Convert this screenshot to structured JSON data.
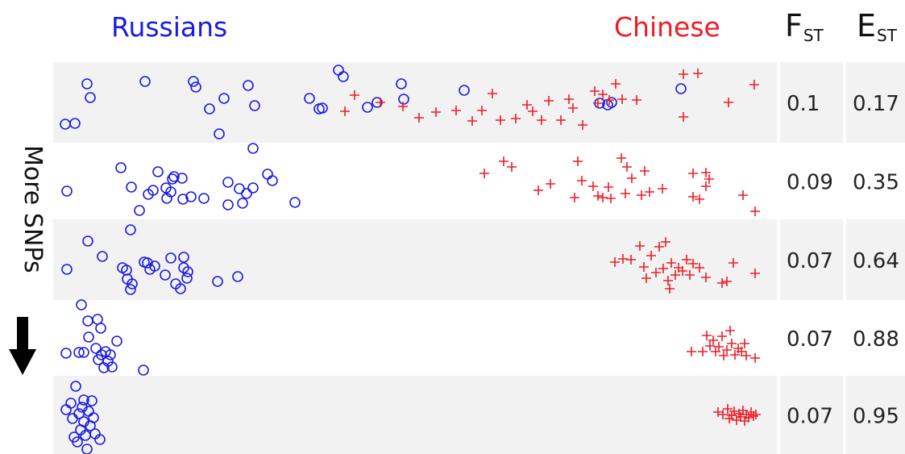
{
  "headers": {
    "russians": "Russians",
    "chinese": "Chinese",
    "fst_main": "F",
    "fst_sub": "ST",
    "est_main": "E",
    "est_sub": "ST"
  },
  "side_label": "More SNPs",
  "icons": {
    "arrow": "arrow-down-icon"
  },
  "colors": {
    "russians": "#1a1ae6",
    "chinese": "#ee1c24",
    "band_shaded": "#f2f2f2",
    "band_plain": "#ffffff"
  },
  "rows": [
    {
      "fst": "0.1",
      "est": "0.17",
      "russians": [
        [
          81,
          154
        ],
        [
          93,
          153
        ],
        [
          108,
          104
        ],
        [
          112,
          121
        ],
        [
          180,
          101
        ],
        [
          240,
          101
        ],
        [
          243,
          108
        ],
        [
          278,
          122
        ],
        [
          260,
          135
        ],
        [
          308,
          106
        ],
        [
          316,
          131
        ],
        [
          272,
          166
        ],
        [
          384,
          122
        ],
        [
          396,
          135
        ],
        [
          400,
          134
        ],
        [
          420,
          87
        ],
        [
          426,
          95
        ],
        [
          456,
          133
        ],
        [
          468,
          127
        ],
        [
          498,
          104
        ],
        [
          501,
          123
        ],
        [
          576,
          112
        ],
        [
          744,
          128
        ],
        [
          754,
          130
        ],
        [
          759,
          127
        ],
        [
          845,
          110
        ]
      ],
      "chinese": [
        [
          428,
          138
        ],
        [
          440,
          118
        ],
        [
          472,
          127
        ],
        [
          500,
          132
        ],
        [
          520,
          146
        ],
        [
          541,
          139
        ],
        [
          566,
          137
        ],
        [
          586,
          150
        ],
        [
          598,
          137
        ],
        [
          611,
          116
        ],
        [
          621,
          149
        ],
        [
          640,
          147
        ],
        [
          654,
          130
        ],
        [
          661,
          138
        ],
        [
          672,
          149
        ],
        [
          681,
          125
        ],
        [
          696,
          149
        ],
        [
          706,
          123
        ],
        [
          711,
          134
        ],
        [
          723,
          155
        ],
        [
          738,
          113
        ],
        [
          742,
          128
        ],
        [
          748,
          117
        ],
        [
          756,
          124
        ],
        [
          764,
          104
        ],
        [
          772,
          123
        ],
        [
          790,
          124
        ],
        [
          848,
          92
        ],
        [
          866,
          91
        ],
        [
          848,
          145
        ],
        [
          904,
          127
        ],
        [
          936,
          105
        ]
      ]
    },
    {
      "fst": "0.09",
      "est": "0.35",
      "russians": [
        [
          83,
          237
        ],
        [
          150,
          208
        ],
        [
          163,
          232
        ],
        [
          173,
          261
        ],
        [
          159,
          282
        ],
        [
          184,
          241
        ],
        [
          190,
          236
        ],
        [
          196,
          213
        ],
        [
          207,
          246
        ],
        [
          206,
          233
        ],
        [
          214,
          222
        ],
        [
          216,
          219
        ],
        [
          226,
          221
        ],
        [
          227,
          247
        ],
        [
          212,
          238
        ],
        [
          237,
          244
        ],
        [
          253,
          246
        ],
        [
          283,
          226
        ],
        [
          283,
          254
        ],
        [
          297,
          234
        ],
        [
          301,
          252
        ],
        [
          306,
          240
        ],
        [
          314,
          233
        ],
        [
          332,
          216
        ],
        [
          338,
          224
        ],
        [
          314,
          184
        ],
        [
          366,
          251
        ]
      ],
      "chinese": [
        [
          601,
          215
        ],
        [
          625,
          200
        ],
        [
          635,
          207
        ],
        [
          668,
          236
        ],
        [
          683,
          228
        ],
        [
          713,
          245
        ],
        [
          717,
          200
        ],
        [
          722,
          224
        ],
        [
          736,
          231
        ],
        [
          742,
          243
        ],
        [
          748,
          245
        ],
        [
          755,
          232
        ],
        [
          758,
          246
        ],
        [
          771,
          196
        ],
        [
          776,
          240
        ],
        [
          778,
          207
        ],
        [
          784,
          221
        ],
        [
          796,
          242
        ],
        [
          800,
          212
        ],
        [
          806,
          238
        ],
        [
          822,
          234
        ],
        [
          860,
          215
        ],
        [
          860,
          244
        ],
        [
          876,
          214
        ],
        [
          880,
          222
        ],
        [
          876,
          231
        ],
        [
          868,
          247
        ],
        [
          922,
          242
        ],
        [
          937,
          262
        ]
      ]
    },
    {
      "fst": "0.07",
      "est": "0.64",
      "russians": [
        [
          83,
          334
        ],
        [
          109,
          299
        ],
        [
          127,
          318
        ],
        [
          152,
          332
        ],
        [
          157,
          335
        ],
        [
          162,
          359
        ],
        [
          158,
          346
        ],
        [
          162,
          285
        ],
        [
          164,
          352
        ],
        [
          179,
          325
        ],
        [
          183,
          326
        ],
        [
          186,
          334
        ],
        [
          192,
          330
        ],
        [
          205,
          341
        ],
        [
          212,
          320
        ],
        [
          228,
          319
        ],
        [
          228,
          332
        ],
        [
          233,
          337
        ],
        [
          232,
          345
        ],
        [
          218,
          352
        ],
        [
          224,
          358
        ],
        [
          270,
          349
        ],
        [
          295,
          343
        ]
      ],
      "chinese": [
        [
          763,
          325
        ],
        [
          773,
          321
        ],
        [
          783,
          322
        ],
        [
          794,
          305
        ],
        [
          799,
          331
        ],
        [
          802,
          345
        ],
        [
          808,
          317
        ],
        [
          814,
          338
        ],
        [
          818,
          306
        ],
        [
          823,
          333
        ],
        [
          826,
          300
        ],
        [
          829,
          348
        ],
        [
          831,
          358
        ],
        [
          833,
          326
        ],
        [
          838,
          341
        ],
        [
          842,
          332
        ],
        [
          847,
          336
        ],
        [
          852,
          322
        ],
        [
          856,
          341
        ],
        [
          860,
          327
        ],
        [
          868,
          332
        ],
        [
          876,
          344
        ],
        [
          896,
          351
        ],
        [
          902,
          349
        ],
        [
          910,
          326
        ],
        [
          937,
          339
        ]
      ]
    },
    {
      "fst": "0.07",
      "est": "0.88",
      "russians": [
        [
          82,
          438
        ],
        [
          98,
          437
        ],
        [
          101,
          378
        ],
        [
          104,
          437
        ],
        [
          109,
          398
        ],
        [
          110,
          418
        ],
        [
          119,
          432
        ],
        [
          121,
          396
        ],
        [
          122,
          446
        ],
        [
          125,
          407
        ],
        [
          129,
          456
        ],
        [
          126,
          440
        ],
        [
          131,
          436
        ],
        [
          134,
          448
        ],
        [
          137,
          440
        ],
        [
          139,
          455
        ],
        [
          145,
          423
        ],
        [
          178,
          459
        ]
      ],
      "chinese": [
        [
          858,
          436
        ],
        [
          872,
          436
        ],
        [
          877,
          416
        ],
        [
          881,
          429
        ],
        [
          885,
          422
        ],
        [
          888,
          436
        ],
        [
          892,
          430
        ],
        [
          896,
          417
        ],
        [
          898,
          441
        ],
        [
          902,
          434
        ],
        [
          906,
          410
        ],
        [
          908,
          426
        ],
        [
          912,
          440
        ],
        [
          916,
          432
        ],
        [
          920,
          436
        ],
        [
          924,
          426
        ],
        [
          926,
          441
        ],
        [
          937,
          444
        ]
      ]
    },
    {
      "fst": "0.07",
      "est": "0.95",
      "russians": [
        [
          82,
          508
        ],
        [
          88,
          500
        ],
        [
          90,
          519
        ],
        [
          92,
          542
        ],
        [
          94,
          479
        ],
        [
          96,
          548
        ],
        [
          98,
          513
        ],
        [
          100,
          533
        ],
        [
          102,
          505
        ],
        [
          104,
          496
        ],
        [
          104,
          523
        ],
        [
          106,
          540
        ],
        [
          108,
          557
        ],
        [
          110,
          510
        ],
        [
          112,
          528
        ],
        [
          114,
          497
        ],
        [
          116,
          518
        ],
        [
          118,
          538
        ],
        [
          124,
          545
        ]
      ],
      "chinese": [
        [
          891,
          511
        ],
        [
          897,
          514
        ],
        [
          903,
          507
        ],
        [
          905,
          519
        ],
        [
          908,
          515
        ],
        [
          911,
          510
        ],
        [
          914,
          521
        ],
        [
          917,
          513
        ],
        [
          919,
          517
        ],
        [
          922,
          509
        ],
        [
          924,
          522
        ],
        [
          926,
          514
        ],
        [
          929,
          518
        ],
        [
          932,
          511
        ],
        [
          935,
          516
        ],
        [
          938,
          514
        ]
      ]
    }
  ]
}
